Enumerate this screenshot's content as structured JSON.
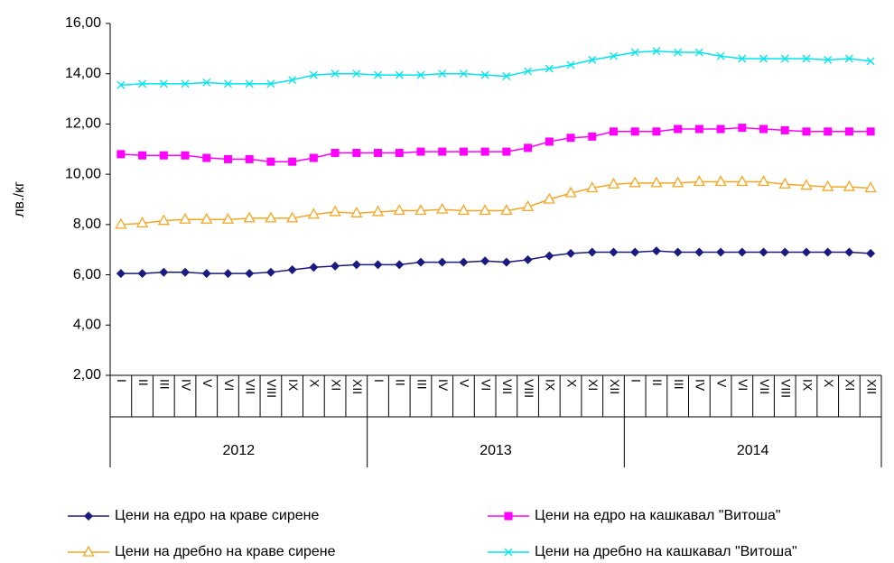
{
  "chart_data": {
    "type": "line",
    "y_label": "лв./кг",
    "categories": [
      "I",
      "II",
      "III",
      "IV",
      "V",
      "VI",
      "VII",
      "VIII",
      "IX",
      "X",
      "XI",
      "XII",
      "I",
      "II",
      "III",
      "IV",
      "V",
      "VI",
      "VII",
      "VIII",
      "IX",
      "X",
      "XI",
      "XII",
      "I",
      "II",
      "III",
      "IV",
      "V",
      "VI",
      "VII",
      "VIII",
      "IX",
      "X",
      "XI",
      "XII"
    ],
    "x_groups": [
      "2012",
      "2013",
      "2014"
    ],
    "ylim": [
      2,
      16
    ],
    "yticks": [
      {
        "value": 2,
        "label": "2,00"
      },
      {
        "value": 4,
        "label": "4,00"
      },
      {
        "value": 6,
        "label": "6,00"
      },
      {
        "value": 8,
        "label": "8,00"
      },
      {
        "value": 10,
        "label": "10,00"
      },
      {
        "value": 12,
        "label": "12,00"
      },
      {
        "value": 14,
        "label": "14,00"
      },
      {
        "value": 16,
        "label": "16,00"
      }
    ],
    "series": [
      {
        "name": "Цени на едро на краве сирене",
        "color": "#1a1a80",
        "marker": "diamond",
        "values": [
          6.05,
          6.05,
          6.1,
          6.1,
          6.05,
          6.05,
          6.05,
          6.1,
          6.2,
          6.3,
          6.35,
          6.4,
          6.4,
          6.4,
          6.5,
          6.5,
          6.5,
          6.55,
          6.5,
          6.6,
          6.75,
          6.85,
          6.9,
          6.9,
          6.9,
          6.95,
          6.9,
          6.9,
          6.9,
          6.9,
          6.9,
          6.9,
          6.9,
          6.9,
          6.9,
          6.85
        ]
      },
      {
        "name": "Цени на едро на кашкавал \"Витоша\"",
        "color": "#ff00ff",
        "marker": "square",
        "values": [
          10.8,
          10.75,
          10.75,
          10.75,
          10.65,
          10.6,
          10.6,
          10.5,
          10.5,
          10.65,
          10.85,
          10.85,
          10.85,
          10.85,
          10.9,
          10.9,
          10.9,
          10.9,
          10.9,
          11.05,
          11.3,
          11.45,
          11.5,
          11.7,
          11.7,
          11.7,
          11.8,
          11.8,
          11.8,
          11.85,
          11.8,
          11.75,
          11.7,
          11.7,
          11.7,
          11.7
        ]
      },
      {
        "name": "Цени на дребно на краве сирене",
        "color": "#f5a623",
        "marker": "triangle",
        "values": [
          8.0,
          8.05,
          8.15,
          8.2,
          8.2,
          8.2,
          8.25,
          8.25,
          8.25,
          8.4,
          8.5,
          8.45,
          8.5,
          8.55,
          8.55,
          8.6,
          8.55,
          8.55,
          8.55,
          8.7,
          9.0,
          9.25,
          9.45,
          9.6,
          9.65,
          9.65,
          9.65,
          9.7,
          9.7,
          9.7,
          9.7,
          9.6,
          9.55,
          9.5,
          9.5,
          9.45
        ]
      },
      {
        "name": "Цени на дребно на кашкавал \"Витоша\"",
        "color": "#00e5f0",
        "marker": "x",
        "values": [
          13.55,
          13.6,
          13.6,
          13.6,
          13.65,
          13.6,
          13.6,
          13.6,
          13.75,
          13.95,
          14.0,
          14.0,
          13.95,
          13.95,
          13.95,
          14.0,
          14.0,
          13.95,
          13.9,
          14.1,
          14.2,
          14.35,
          14.55,
          14.7,
          14.85,
          14.9,
          14.85,
          14.85,
          14.7,
          14.6,
          14.6,
          14.6,
          14.6,
          14.55,
          14.6,
          14.5
        ]
      }
    ]
  }
}
